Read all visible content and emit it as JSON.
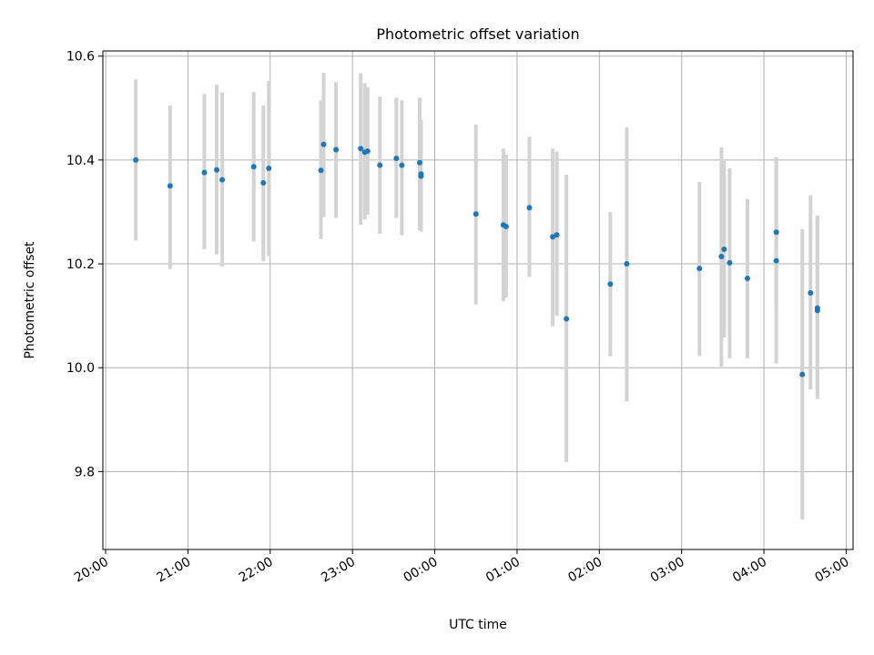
{
  "chart_data": {
    "type": "scatter",
    "title": "Photometric offset variation",
    "xlabel": "UTC time",
    "ylabel": "Photometric offset",
    "grid": true,
    "xlim": [
      "19:58",
      "05:05"
    ],
    "ylim": [
      9.65,
      10.61
    ],
    "xticks": [
      "20:00",
      "21:00",
      "22:00",
      "23:00",
      "00:00",
      "01:00",
      "02:00",
      "03:00",
      "04:00",
      "05:00"
    ],
    "yticks": [
      "9.8",
      "10.0",
      "10.2",
      "10.4",
      "10.6"
    ],
    "colors": {
      "points": "#1f77b4",
      "errorbars": "#d3d3d3",
      "grid": "#b0b0b0"
    },
    "series": [
      {
        "points": [
          {
            "x": "20:22",
            "y": 10.4,
            "ylo": 10.245,
            "yhi": 10.555
          },
          {
            "x": "20:47",
            "y": 10.35,
            "ylo": 10.19,
            "yhi": 10.505
          },
          {
            "x": "21:12",
            "y": 10.376,
            "ylo": 10.228,
            "yhi": 10.527
          },
          {
            "x": "21:21",
            "y": 10.381,
            "ylo": 10.218,
            "yhi": 10.545
          },
          {
            "x": "21:25",
            "y": 10.362,
            "ylo": 10.195,
            "yhi": 10.53
          },
          {
            "x": "21:48",
            "y": 10.387,
            "ylo": 10.243,
            "yhi": 10.531
          },
          {
            "x": "21:55",
            "y": 10.356,
            "ylo": 10.205,
            "yhi": 10.505
          },
          {
            "x": "21:59",
            "y": 10.384,
            "ylo": 10.215,
            "yhi": 10.552
          },
          {
            "x": "22:37",
            "y": 10.38,
            "ylo": 10.248,
            "yhi": 10.515
          },
          {
            "x": "22:39",
            "y": 10.43,
            "ylo": 10.29,
            "yhi": 10.568
          },
          {
            "x": "22:48",
            "y": 10.42,
            "ylo": 10.288,
            "yhi": 10.55
          },
          {
            "x": "23:06",
            "y": 10.422,
            "ylo": 10.275,
            "yhi": 10.567
          },
          {
            "x": "23:09",
            "y": 10.415,
            "ylo": 10.285,
            "yhi": 10.548
          },
          {
            "x": "23:11",
            "y": 10.417,
            "ylo": 10.295,
            "yhi": 10.54
          },
          {
            "x": "23:20",
            "y": 10.39,
            "ylo": 10.258,
            "yhi": 10.522
          },
          {
            "x": "23:32",
            "y": 10.403,
            "ylo": 10.288,
            "yhi": 10.52
          },
          {
            "x": "23:36",
            "y": 10.39,
            "ylo": 10.255,
            "yhi": 10.515
          },
          {
            "x": "23:49",
            "y": 10.395,
            "ylo": 10.265,
            "yhi": 10.52
          },
          {
            "x": "23:50",
            "y": 10.373,
            "ylo": 10.262,
            "yhi": 10.478
          },
          {
            "x": "23:50",
            "y": 10.369,
            "ylo": 10.265,
            "yhi": 10.47
          },
          {
            "x": "00:30",
            "y": 10.296,
            "ylo": 10.122,
            "yhi": 10.468
          },
          {
            "x": "00:50",
            "y": 10.275,
            "ylo": 10.128,
            "yhi": 10.422
          },
          {
            "x": "00:52",
            "y": 10.272,
            "ylo": 10.135,
            "yhi": 10.41
          },
          {
            "x": "01:09",
            "y": 10.308,
            "ylo": 10.175,
            "yhi": 10.445
          },
          {
            "x": "01:26",
            "y": 10.252,
            "ylo": 10.08,
            "yhi": 10.422
          },
          {
            "x": "01:29",
            "y": 10.256,
            "ylo": 10.1,
            "yhi": 10.416
          },
          {
            "x": "01:36",
            "y": 10.094,
            "ylo": 9.818,
            "yhi": 10.372
          },
          {
            "x": "02:08",
            "y": 10.161,
            "ylo": 10.022,
            "yhi": 10.3
          },
          {
            "x": "02:20",
            "y": 10.2,
            "ylo": 9.935,
            "yhi": 10.463
          },
          {
            "x": "03:13",
            "y": 10.191,
            "ylo": 10.022,
            "yhi": 10.358
          },
          {
            "x": "03:29",
            "y": 10.214,
            "ylo": 10.002,
            "yhi": 10.424
          },
          {
            "x": "03:31",
            "y": 10.228,
            "ylo": 10.058,
            "yhi": 10.398
          },
          {
            "x": "03:35",
            "y": 10.202,
            "ylo": 10.018,
            "yhi": 10.384
          },
          {
            "x": "03:48",
            "y": 10.172,
            "ylo": 10.018,
            "yhi": 10.325
          },
          {
            "x": "04:09",
            "y": 10.261,
            "ylo": 10.118,
            "yhi": 10.405
          },
          {
            "x": "04:09",
            "y": 10.206,
            "ylo": 10.008,
            "yhi": 10.405
          },
          {
            "x": "04:28",
            "y": 9.987,
            "ylo": 9.708,
            "yhi": 10.267
          },
          {
            "x": "04:34",
            "y": 10.144,
            "ylo": 9.958,
            "yhi": 10.332
          },
          {
            "x": "04:39",
            "y": 10.115,
            "ylo": 9.94,
            "yhi": 10.293
          },
          {
            "x": "04:39",
            "y": 10.11,
            "ylo": 9.945,
            "yhi": 10.293
          }
        ]
      }
    ]
  }
}
